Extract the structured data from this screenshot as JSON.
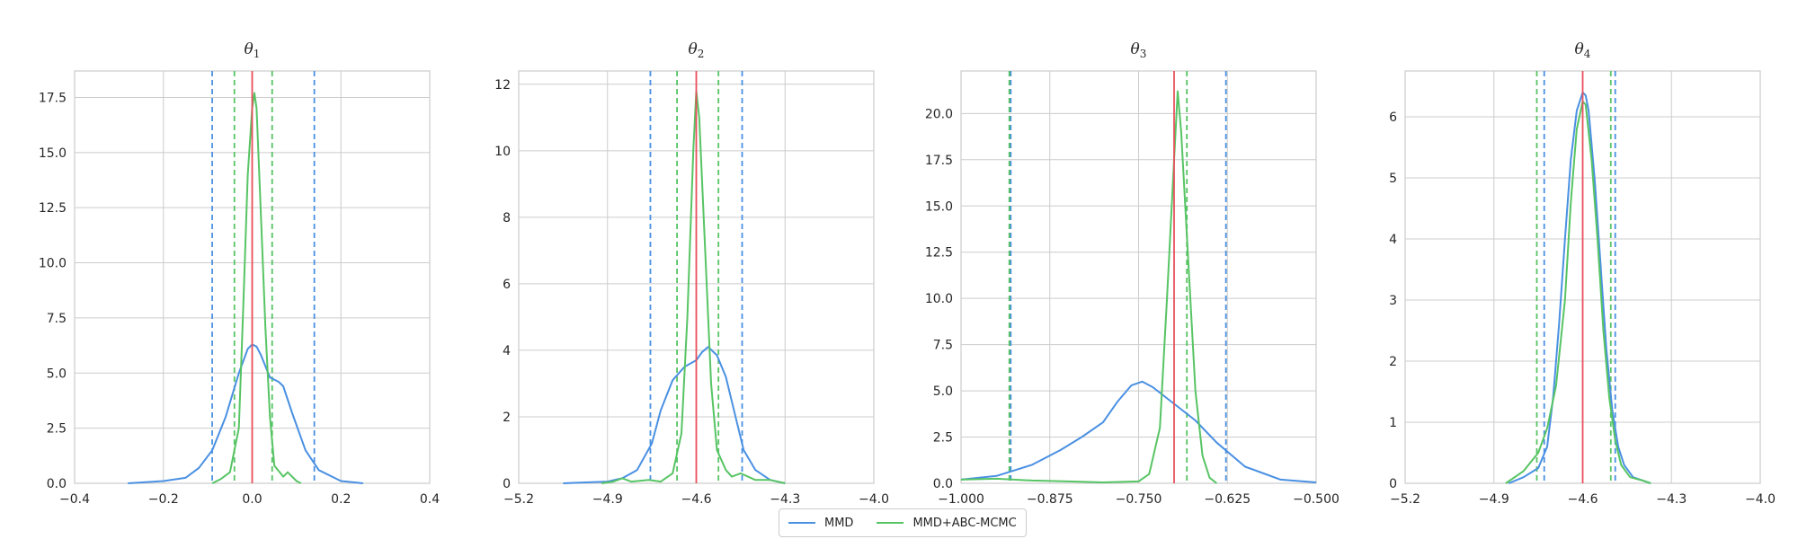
{
  "colors": {
    "mmd": "#4a90e2",
    "abc": "#57c464",
    "truth": "#e8505b",
    "grid": "#cccccc"
  },
  "legend": [
    {
      "label": "MMD",
      "color": "#4a90e2"
    },
    {
      "label": "MMD+ABC-MCMC",
      "color": "#57c464"
    }
  ],
  "chart_data": [
    {
      "type": "line",
      "title": {
        "base": "θ",
        "sub": "1"
      },
      "xlim": [
        -0.4,
        0.4
      ],
      "ylim": [
        0,
        18.7
      ],
      "xticks": [
        -0.4,
        -0.2,
        0.0,
        0.2,
        0.4
      ],
      "xtick_labels": [
        "−0.4",
        "−0.2",
        "0.0",
        "0.2",
        "0.4"
      ],
      "yticks": [
        0,
        2.5,
        5,
        7.5,
        10,
        12.5,
        15,
        17.5
      ],
      "ytick_labels": [
        "0.0",
        "2.5",
        "5.0",
        "7.5",
        "10.0",
        "12.5",
        "15.0",
        "17.5"
      ],
      "true_value": 0.0,
      "series": [
        {
          "name": "MMD",
          "interval": [
            -0.09,
            0.14
          ],
          "x": [
            -0.28,
            -0.2,
            -0.15,
            -0.12,
            -0.09,
            -0.06,
            -0.03,
            -0.01,
            0.0,
            0.01,
            0.02,
            0.04,
            0.06,
            0.07,
            0.09,
            0.12,
            0.15,
            0.2,
            0.25
          ],
          "y": [
            0,
            0.1,
            0.25,
            0.7,
            1.5,
            3.0,
            5.0,
            6.1,
            6.3,
            6.2,
            5.8,
            4.8,
            4.6,
            4.4,
            3.2,
            1.5,
            0.6,
            0.1,
            0
          ]
        },
        {
          "name": "MMD+ABC-MCMC",
          "interval": [
            -0.04,
            0.045
          ],
          "x": [
            -0.09,
            -0.07,
            -0.05,
            -0.03,
            -0.02,
            -0.01,
            0.0,
            0.005,
            0.01,
            0.02,
            0.03,
            0.04,
            0.05,
            0.07,
            0.08,
            0.1,
            0.11
          ],
          "y": [
            0,
            0.2,
            0.5,
            2.5,
            8.0,
            14.0,
            17.0,
            17.7,
            17.0,
            12.0,
            7.0,
            3.0,
            0.8,
            0.3,
            0.5,
            0.1,
            0
          ]
        }
      ]
    },
    {
      "type": "line",
      "title": {
        "base": "θ",
        "sub": "2"
      },
      "xlim": [
        -5.2,
        -4.0
      ],
      "ylim": [
        0,
        12.4
      ],
      "xticks": [
        -5.2,
        -4.9,
        -4.6,
        -4.3,
        -4.0
      ],
      "xtick_labels": [
        "−5.2",
        "−4.9",
        "−4.6",
        "−4.3",
        "−4.0"
      ],
      "yticks": [
        0,
        2,
        4,
        6,
        8,
        10,
        12
      ],
      "ytick_labels": [
        "0",
        "2",
        "4",
        "6",
        "8",
        "10",
        "12"
      ],
      "true_value": -4.6,
      "series": [
        {
          "name": "MMD",
          "interval": [
            -4.755,
            -4.445
          ],
          "x": [
            -5.05,
            -4.9,
            -4.85,
            -4.8,
            -4.75,
            -4.72,
            -4.68,
            -4.64,
            -4.6,
            -4.58,
            -4.56,
            -4.53,
            -4.5,
            -4.47,
            -4.44,
            -4.4,
            -4.35,
            -4.3
          ],
          "y": [
            0,
            0.05,
            0.15,
            0.4,
            1.2,
            2.2,
            3.1,
            3.5,
            3.7,
            3.95,
            4.1,
            3.85,
            3.2,
            2.1,
            1.0,
            0.4,
            0.1,
            0
          ]
        },
        {
          "name": "MMD+ABC-MCMC",
          "interval": [
            -4.665,
            -4.525
          ],
          "x": [
            -4.92,
            -4.88,
            -4.85,
            -4.82,
            -4.76,
            -4.72,
            -4.68,
            -4.65,
            -4.63,
            -4.61,
            -4.6,
            -4.59,
            -4.57,
            -4.55,
            -4.53,
            -4.5,
            -4.48,
            -4.45,
            -4.4,
            -4.35,
            -4.3
          ],
          "y": [
            0,
            0.05,
            0.15,
            0.05,
            0.1,
            0.05,
            0.3,
            1.5,
            5.0,
            10.0,
            11.8,
            11.0,
            7.0,
            3.0,
            1.0,
            0.4,
            0.2,
            0.3,
            0.1,
            0.1,
            0
          ]
        }
      ]
    },
    {
      "type": "line",
      "title": {
        "base": "θ",
        "sub": "3"
      },
      "xlim": [
        -1.0,
        -0.5
      ],
      "ylim": [
        0,
        22.3
      ],
      "xticks": [
        -1.0,
        -0.875,
        -0.75,
        -0.625,
        -0.5
      ],
      "xtick_labels": [
        "−1.000",
        "−0.875",
        "−0.750",
        "−0.625",
        "−0.500"
      ],
      "yticks": [
        0,
        2.5,
        5,
        7.5,
        10,
        12.5,
        15,
        17.5,
        20
      ],
      "ytick_labels": [
        "0.0",
        "2.5",
        "5.0",
        "7.5",
        "10.0",
        "12.5",
        "15.0",
        "17.5",
        "20.0"
      ],
      "true_value": -0.7,
      "series": [
        {
          "name": "MMD",
          "interval": [
            -0.93,
            -0.627
          ],
          "x": [
            -1.0,
            -0.95,
            -0.9,
            -0.86,
            -0.83,
            -0.8,
            -0.78,
            -0.76,
            -0.745,
            -0.73,
            -0.7,
            -0.67,
            -0.64,
            -0.6,
            -0.55,
            -0.5
          ],
          "y": [
            0.2,
            0.4,
            1.0,
            1.8,
            2.5,
            3.3,
            4.4,
            5.3,
            5.5,
            5.2,
            4.3,
            3.4,
            2.2,
            0.9,
            0.2,
            0.05
          ]
        },
        {
          "name": "MMD+ABC-MCMC",
          "interval": [
            -0.932,
            -0.682
          ],
          "x": [
            -1.0,
            -0.95,
            -0.9,
            -0.85,
            -0.8,
            -0.75,
            -0.735,
            -0.72,
            -0.71,
            -0.7,
            -0.695,
            -0.69,
            -0.68,
            -0.67,
            -0.66,
            -0.65,
            -0.64
          ],
          "y": [
            0.2,
            0.25,
            0.15,
            0.1,
            0.05,
            0.1,
            0.5,
            3.0,
            10.0,
            17.5,
            21.2,
            19.0,
            12.0,
            5.0,
            1.5,
            0.3,
            0
          ]
        }
      ]
    },
    {
      "type": "line",
      "title": {
        "base": "θ",
        "sub": "4"
      },
      "xlim": [
        -5.2,
        -4.0
      ],
      "ylim": [
        0,
        6.75
      ],
      "xticks": [
        -5.2,
        -4.9,
        -4.6,
        -4.3,
        -4.0
      ],
      "xtick_labels": [
        "−5.2",
        "−4.9",
        "−4.6",
        "−4.3",
        "−4.0"
      ],
      "yticks": [
        0,
        1,
        2,
        3,
        4,
        5,
        6
      ],
      "ytick_labels": [
        "0",
        "1",
        "2",
        "3",
        "4",
        "5",
        "6"
      ],
      "true_value": -4.6,
      "series": [
        {
          "name": "MMD",
          "interval": [
            -4.73,
            -4.49
          ],
          "x": [
            -4.85,
            -4.8,
            -4.75,
            -4.72,
            -4.7,
            -4.68,
            -4.66,
            -4.64,
            -4.62,
            -4.6,
            -4.59,
            -4.58,
            -4.56,
            -4.54,
            -4.52,
            -4.5,
            -4.48,
            -4.46,
            -4.43,
            -4.4,
            -4.37
          ],
          "y": [
            0,
            0.1,
            0.25,
            0.6,
            1.4,
            2.6,
            4.0,
            5.3,
            6.1,
            6.4,
            6.35,
            6.1,
            5.0,
            3.6,
            2.2,
            1.2,
            0.6,
            0.3,
            0.1,
            0.05,
            0
          ]
        },
        {
          "name": "MMD+ABC-MCMC",
          "interval": [
            -4.755,
            -4.505
          ],
          "x": [
            -4.86,
            -4.8,
            -4.75,
            -4.72,
            -4.69,
            -4.66,
            -4.64,
            -4.62,
            -4.6,
            -4.59,
            -4.57,
            -4.55,
            -4.53,
            -4.51,
            -4.49,
            -4.47,
            -4.44,
            -4.4,
            -4.37
          ],
          "y": [
            0,
            0.2,
            0.5,
            0.9,
            1.6,
            3.0,
            4.6,
            5.8,
            6.25,
            6.2,
            5.3,
            4.0,
            2.5,
            1.4,
            0.7,
            0.3,
            0.1,
            0.05,
            0
          ]
        }
      ]
    }
  ]
}
